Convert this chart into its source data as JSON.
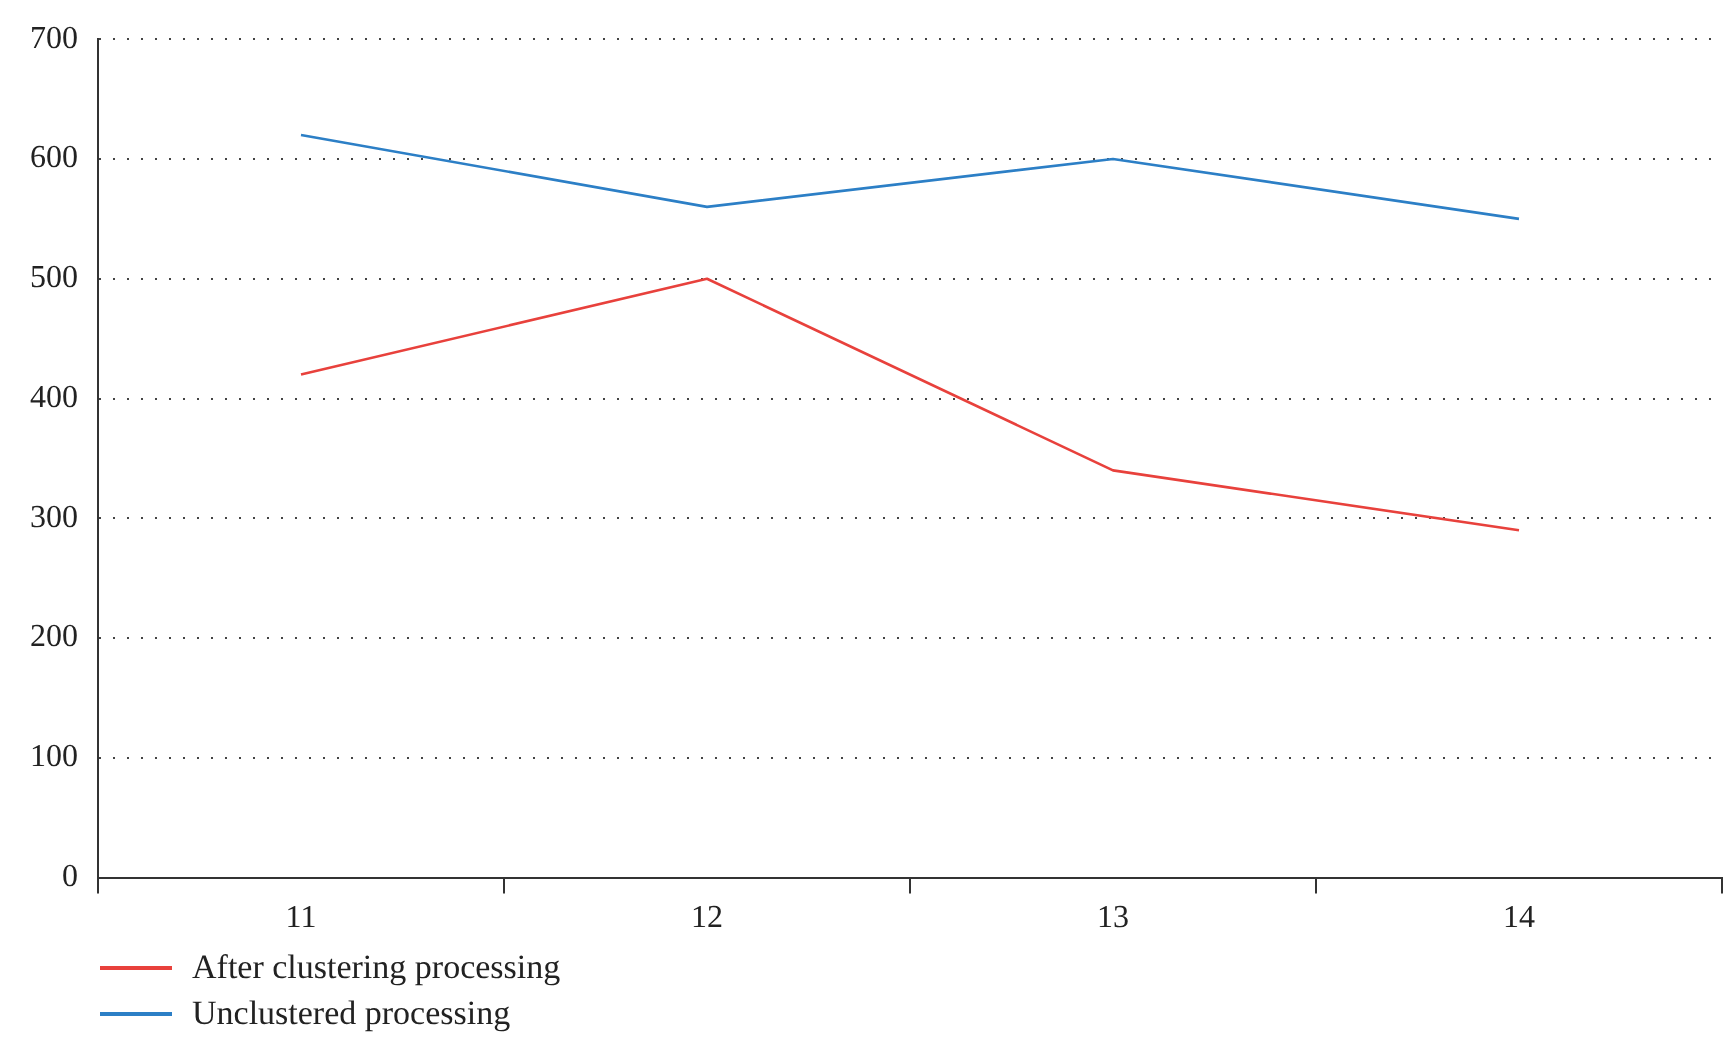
{
  "chart_data": {
    "type": "line",
    "categories": [
      "11",
      "12",
      "13",
      "14"
    ],
    "series": [
      {
        "name": "After clustering processing",
        "color": "#e8413c",
        "values": [
          420,
          500,
          340,
          290
        ]
      },
      {
        "name": "Unclustered processing",
        "color": "#2c7fc6",
        "values": [
          620,
          560,
          600,
          550
        ]
      }
    ],
    "ylim": [
      0,
      700
    ],
    "yticks": [
      0,
      100,
      200,
      300,
      400,
      500,
      600,
      700
    ],
    "grid": "y",
    "legend": "bottom left",
    "marker": "none",
    "line_style": "solid"
  }
}
